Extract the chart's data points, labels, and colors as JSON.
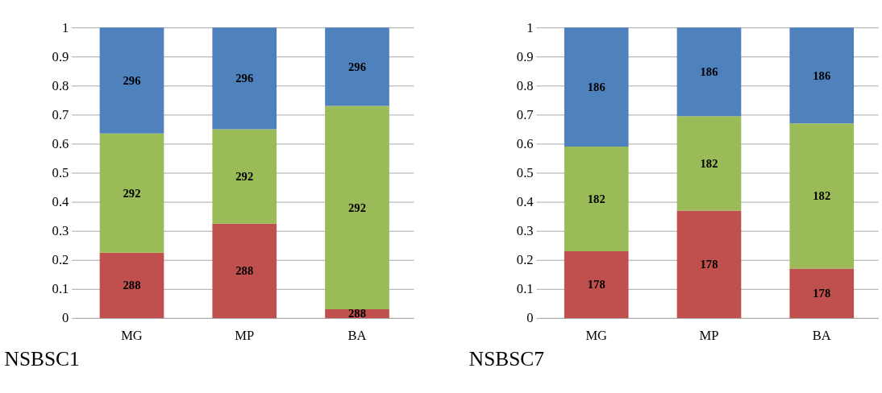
{
  "chart_data": [
    {
      "type": "bar",
      "stacked": true,
      "title": "NSBSC1",
      "categories": [
        "MG",
        "MP",
        "BA"
      ],
      "ylim": [
        0,
        1
      ],
      "yticks": [
        0,
        0.1,
        0.2,
        0.3,
        0.4,
        0.5,
        0.6,
        0.7,
        0.8,
        0.9,
        1
      ],
      "grid": "y",
      "series": [
        {
          "name": "288",
          "color": "#c0504d",
          "values": [
            0.225,
            0.325,
            0.03
          ]
        },
        {
          "name": "292",
          "color": "#9bbb59",
          "values": [
            0.41,
            0.325,
            0.7
          ]
        },
        {
          "name": "296",
          "color": "#4f81bd",
          "values": [
            0.365,
            0.35,
            0.27
          ]
        }
      ]
    },
    {
      "type": "bar",
      "stacked": true,
      "title": "NSBSC7",
      "categories": [
        "MG",
        "MP",
        "BA"
      ],
      "ylim": [
        0,
        1
      ],
      "yticks": [
        0,
        0.1,
        0.2,
        0.3,
        0.4,
        0.5,
        0.6,
        0.7,
        0.8,
        0.9,
        1
      ],
      "grid": "y",
      "series": [
        {
          "name": "178",
          "color": "#c0504d",
          "values": [
            0.23,
            0.37,
            0.17
          ]
        },
        {
          "name": "182",
          "color": "#9bbb59",
          "values": [
            0.36,
            0.325,
            0.5
          ]
        },
        {
          "name": "186",
          "color": "#4f81bd",
          "values": [
            0.41,
            0.305,
            0.33
          ]
        }
      ]
    }
  ]
}
